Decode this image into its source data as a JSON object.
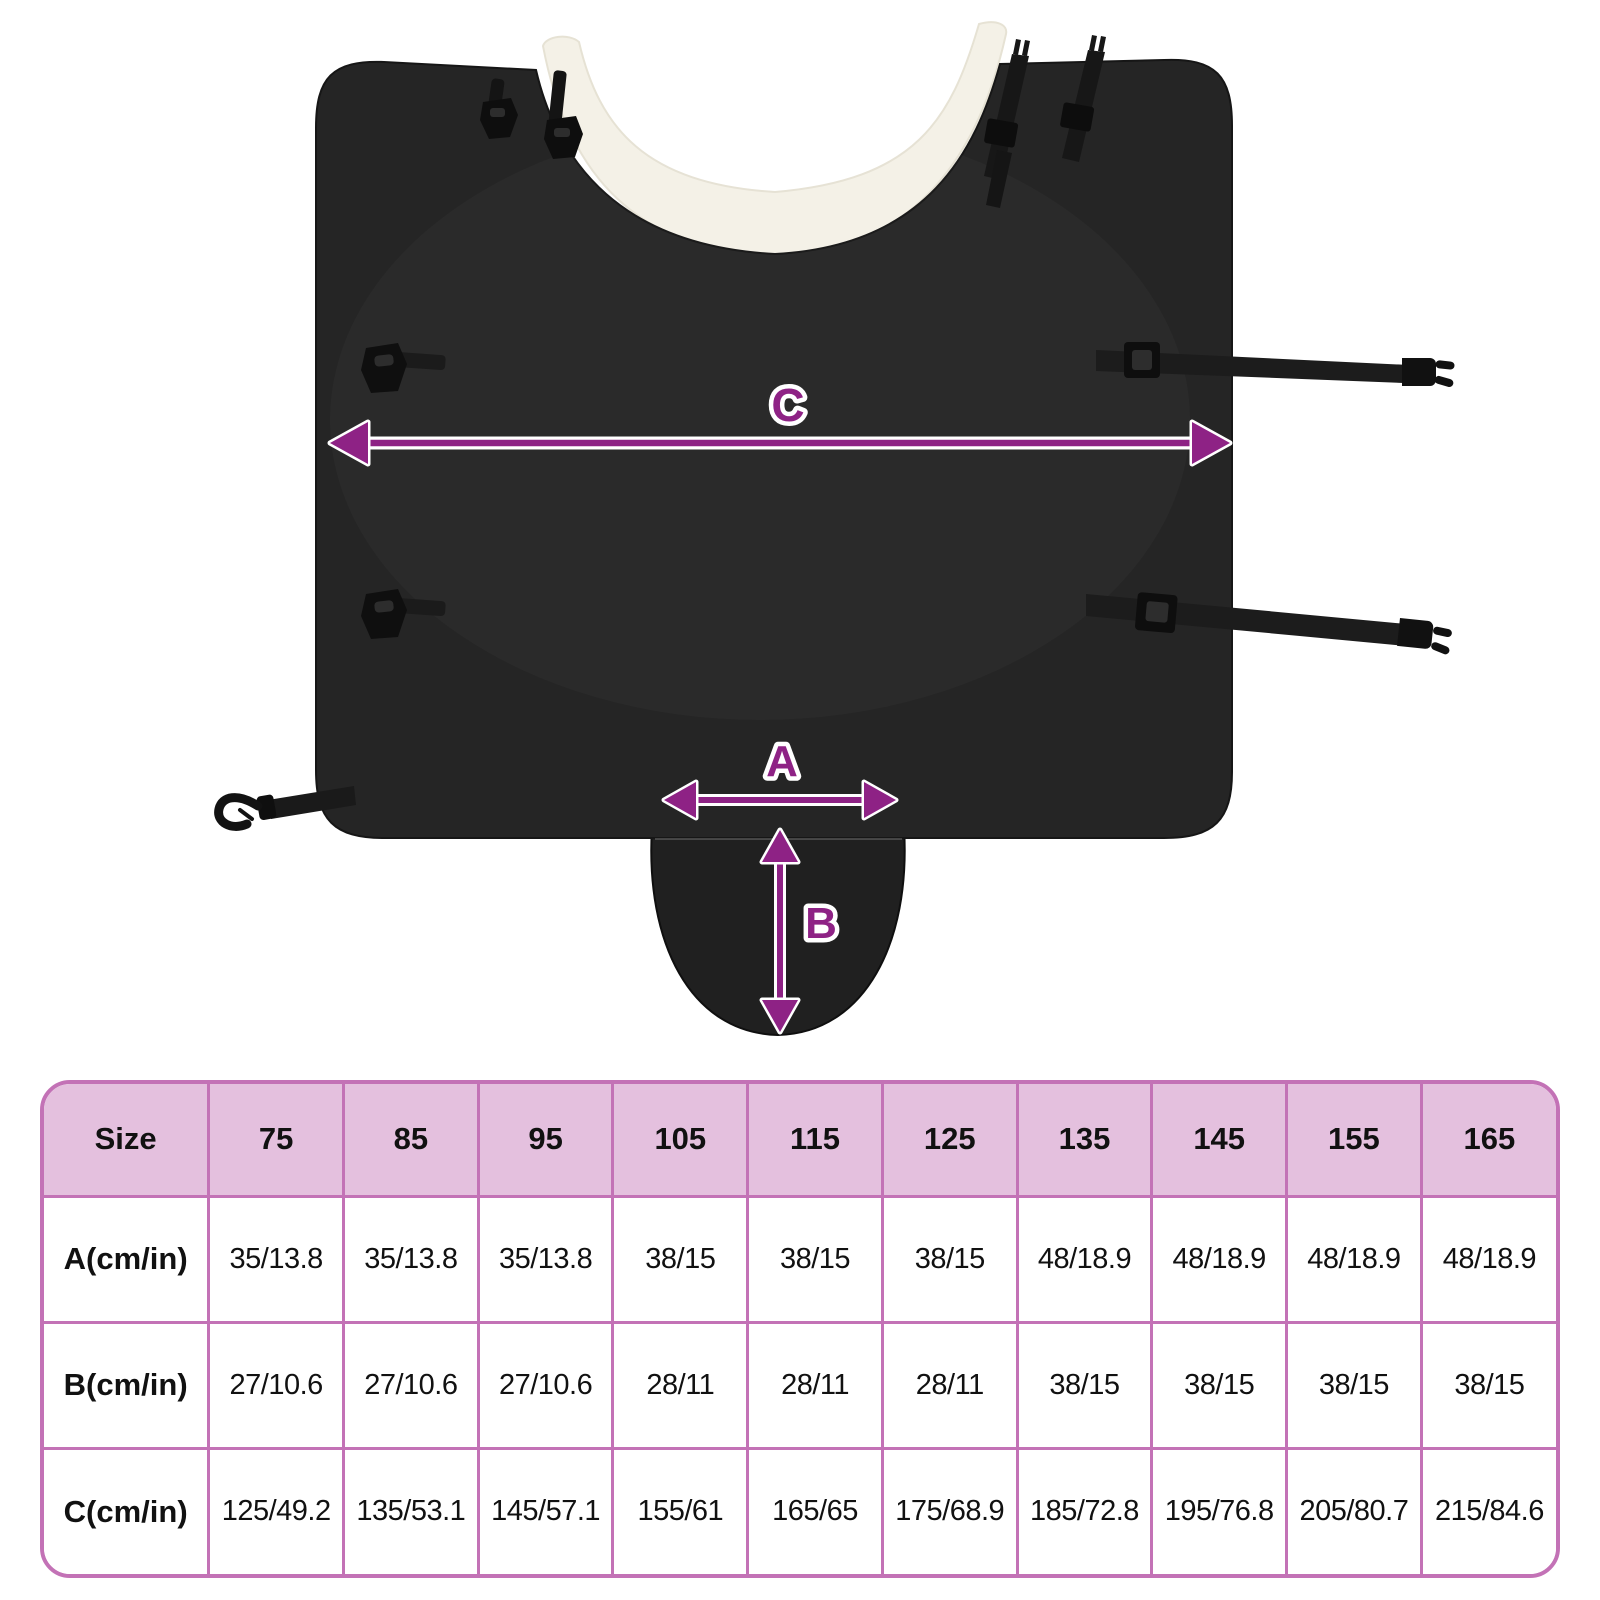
{
  "colors": {
    "arrow": "#8E2285",
    "blanket": "#252525",
    "fleece": "#F4F1E7",
    "tableBorder": "#C372B6",
    "tableHeaderBg": "#E4C0DE",
    "textColor": "#111111"
  },
  "diagram": {
    "description": "black horse blanket with white fleece neck lining, straps and buckles, measurement arrows",
    "labels": {
      "a": "A",
      "b": "B",
      "c": "C"
    }
  },
  "size_table": {
    "header": [
      "Size",
      "75",
      "85",
      "95",
      "105",
      "115",
      "125",
      "135",
      "145",
      "155",
      "165"
    ],
    "rows": [
      {
        "label": "A(cm/in)",
        "values": [
          "35/13.8",
          "35/13.8",
          "35/13.8",
          "38/15",
          "38/15",
          "38/15",
          "48/18.9",
          "48/18.9",
          "48/18.9",
          "48/18.9"
        ]
      },
      {
        "label": "B(cm/in)",
        "values": [
          "27/10.6",
          "27/10.6",
          "27/10.6",
          "28/11",
          "28/11",
          "28/11",
          "38/15",
          "38/15",
          "38/15",
          "38/15"
        ]
      },
      {
        "label": "C(cm/in)",
        "values": [
          "125/49.2",
          "135/53.1",
          "145/57.1",
          "155/61",
          "165/65",
          "175/68.9",
          "185/72.8",
          "195/76.8",
          "205/80.7",
          "215/84.6"
        ]
      }
    ]
  },
  "chart_data": {
    "type": "table",
    "columns": [
      "Size",
      "75",
      "85",
      "95",
      "105",
      "115",
      "125",
      "135",
      "145",
      "155",
      "165"
    ],
    "rows": [
      [
        "A(cm/in)",
        "35/13.8",
        "35/13.8",
        "35/13.8",
        "38/15",
        "38/15",
        "38/15",
        "48/18.9",
        "48/18.9",
        "48/18.9",
        "48/18.9"
      ],
      [
        "B(cm/in)",
        "27/10.6",
        "27/10.6",
        "27/10.6",
        "28/11",
        "28/11",
        "28/11",
        "38/15",
        "38/15",
        "38/15",
        "38/15"
      ],
      [
        "C(cm/in)",
        "125/49.2",
        "135/53.1",
        "145/57.1",
        "155/61",
        "165/65",
        "175/68.9",
        "185/72.8",
        "195/76.8",
        "205/80.7",
        "215/84.6"
      ]
    ]
  }
}
